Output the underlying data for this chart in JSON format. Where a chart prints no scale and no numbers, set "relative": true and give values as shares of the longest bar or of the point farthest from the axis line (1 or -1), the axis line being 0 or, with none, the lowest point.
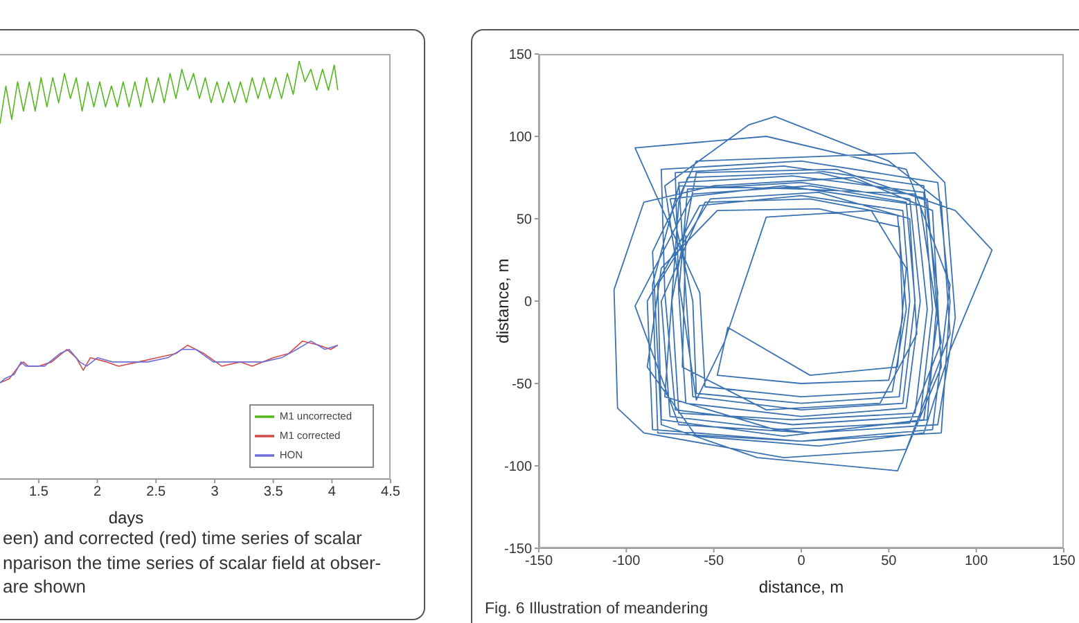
{
  "chart_data": [
    {
      "type": "line",
      "xlabel": "days",
      "xlim": [
        1.17,
        4.5
      ],
      "xticks": [
        1.5,
        2,
        2.5,
        3,
        3.5,
        4,
        4.5
      ],
      "relative": true,
      "legend": "bottom right",
      "series": [
        {
          "name": "M1 uncorrected",
          "color": "#55b81e",
          "x": [
            1.17,
            1.22,
            1.27,
            1.32,
            1.37,
            1.42,
            1.47,
            1.52,
            1.57,
            1.62,
            1.67,
            1.72,
            1.77,
            1.82,
            1.87,
            1.92,
            1.97,
            2.02,
            2.07,
            2.12,
            2.17,
            2.22,
            2.27,
            2.32,
            2.37,
            2.42,
            2.47,
            2.52,
            2.57,
            2.62,
            2.67,
            2.72,
            2.77,
            2.82,
            2.87,
            2.92,
            2.97,
            3.02,
            3.07,
            3.12,
            3.17,
            3.22,
            3.27,
            3.32,
            3.37,
            3.42,
            3.47,
            3.52,
            3.57,
            3.62,
            3.67,
            3.72,
            3.77,
            3.82,
            3.87,
            3.92,
            3.97,
            4.02,
            4.05
          ],
          "values": [
            0.85,
            0.94,
            0.86,
            0.95,
            0.88,
            0.95,
            0.88,
            0.96,
            0.89,
            0.96,
            0.9,
            0.97,
            0.91,
            0.96,
            0.88,
            0.95,
            0.89,
            0.95,
            0.89,
            0.94,
            0.89,
            0.95,
            0.89,
            0.95,
            0.89,
            0.96,
            0.9,
            0.96,
            0.9,
            0.97,
            0.91,
            0.98,
            0.93,
            0.97,
            0.91,
            0.96,
            0.9,
            0.95,
            0.9,
            0.95,
            0.9,
            0.95,
            0.9,
            0.96,
            0.91,
            0.96,
            0.91,
            0.96,
            0.91,
            0.97,
            0.92,
            1.0,
            0.95,
            0.98,
            0.93,
            0.98,
            0.93,
            0.99,
            0.93
          ]
        },
        {
          "name": "M1 corrected",
          "color": "#d24b4b",
          "x": [
            1.17,
            1.25,
            1.33,
            1.37,
            1.41,
            1.5,
            1.61,
            1.74,
            1.82,
            1.88,
            1.94,
            2.08,
            2.18,
            2.35,
            2.51,
            2.67,
            2.77,
            2.91,
            3.06,
            3.22,
            3.32,
            3.5,
            3.63,
            3.75,
            3.89,
            3.99,
            4.05
          ],
          "values": [
            0.23,
            0.24,
            0.27,
            0.28,
            0.27,
            0.27,
            0.28,
            0.31,
            0.29,
            0.26,
            0.29,
            0.28,
            0.27,
            0.28,
            0.29,
            0.3,
            0.32,
            0.3,
            0.27,
            0.28,
            0.27,
            0.29,
            0.3,
            0.33,
            0.32,
            0.31,
            0.32
          ]
        },
        {
          "name": "HON",
          "color": "#6d6dd8",
          "x": [
            1.17,
            1.21,
            1.29,
            1.35,
            1.39,
            1.45,
            1.55,
            1.68,
            1.76,
            1.85,
            1.91,
            2.0,
            2.13,
            2.27,
            2.43,
            2.6,
            2.72,
            2.84,
            2.99,
            3.14,
            3.27,
            3.41,
            3.57,
            3.7,
            3.82,
            3.94,
            4.05
          ],
          "values": [
            0.23,
            0.24,
            0.25,
            0.28,
            0.27,
            0.27,
            0.27,
            0.3,
            0.31,
            0.28,
            0.27,
            0.29,
            0.28,
            0.28,
            0.28,
            0.29,
            0.31,
            0.31,
            0.28,
            0.28,
            0.28,
            0.28,
            0.29,
            0.31,
            0.33,
            0.31,
            0.32
          ]
        }
      ],
      "annotations": [
        "een) and corrected (red) time series of scalar",
        "nparison the time series of scalar field at obser-",
        "are shown"
      ]
    },
    {
      "type": "line",
      "xlabel": "distance, m",
      "ylabel": "distance, m",
      "xlim": [
        -150,
        150
      ],
      "ylim": [
        -150,
        150
      ],
      "xticks": [
        -150,
        -100,
        -50,
        0,
        50,
        100,
        150
      ],
      "yticks": [
        -150,
        -100,
        -50,
        0,
        50,
        100,
        150
      ],
      "series": [
        {
          "color": "#3b72b2",
          "x": [
            -70,
            -65,
            0,
            62,
            68,
            60,
            0,
            -66,
            -70,
            -72,
            -10,
            70,
            78,
            72,
            5,
            -75,
            -80,
            -55,
            5,
            55,
            60,
            52,
            0,
            -55,
            -58,
            -95,
            -20,
            60,
            85,
            75,
            0,
            -82,
            -85,
            -70,
            0,
            65,
            72,
            65,
            -5,
            -70,
            -74,
            -60,
            20,
            88,
            109,
            85,
            70,
            10,
            -60,
            -88,
            -80,
            -48,
            10,
            56,
            58,
            50,
            0,
            -48,
            -42,
            5,
            55,
            60,
            40,
            -20,
            -44,
            -60,
            -78,
            -30,
            -15,
            50,
            80,
            85,
            60,
            -10,
            -90,
            -105,
            -107,
            -90,
            -50,
            30,
            75,
            80,
            55,
            -25,
            -80,
            -85,
            -60,
            65,
            82,
            88,
            78,
            5,
            -70,
            -95,
            -62,
            5,
            60,
            65,
            58,
            0,
            -62,
            -66,
            -70,
            -5,
            70,
            75,
            68,
            -5,
            -72,
            -78,
            -80,
            0,
            78,
            85,
            80,
            0,
            -85,
            -88,
            -58,
            0,
            58,
            62,
            56,
            0,
            -60,
            -62,
            -75,
            -10,
            68,
            80,
            62,
            -15,
            -78,
            -70,
            -65,
            10,
            72,
            78,
            70,
            -10,
            -80,
            -82,
            -52,
            10,
            62,
            66,
            45,
            -20,
            -68,
            -66
          ],
          "values": [
            5,
            68,
            72,
            62,
            0,
            -65,
            -70,
            -62,
            5,
            78,
            82,
            70,
            5,
            -72,
            -80,
            -70,
            0,
            60,
            62,
            52,
            -5,
            -55,
            -58,
            -52,
            5,
            93,
            100,
            80,
            10,
            -78,
            -85,
            -80,
            10,
            70,
            68,
            65,
            -5,
            -68,
            -72,
            -68,
            0,
            78,
            80,
            55,
            31,
            -30,
            -80,
            -88,
            -82,
            -40,
            20,
            55,
            56,
            45,
            -10,
            -48,
            -50,
            -45,
            -16,
            -45,
            -40,
            20,
            55,
            51,
            -25,
            -60,
            70,
            107,
            112,
            85,
            60,
            -20,
            -90,
            -95,
            -80,
            -65,
            7,
            60,
            70,
            75,
            55,
            -40,
            -103,
            -95,
            -75,
            30,
            85,
            90,
            72,
            -10,
            -75,
            -80,
            -75,
            -3,
            65,
            70,
            60,
            0,
            -62,
            -66,
            -58,
            5,
            72,
            76,
            66,
            -5,
            -70,
            -75,
            -66,
            5,
            80,
            85,
            72,
            0,
            -80,
            -85,
            -78,
            0,
            58,
            64,
            55,
            0,
            -58,
            -62,
            -56,
            0,
            62,
            70,
            58,
            -25,
            -74,
            -78,
            -58,
            60,
            75,
            78,
            62,
            -10,
            -72,
            -82,
            -72,
            10,
            62,
            66,
            50,
            -20,
            -62,
            -66,
            -40,
            40
          ]
        }
      ],
      "annotations": [
        "Fig. 6 Illustration of meandering"
      ]
    }
  ]
}
